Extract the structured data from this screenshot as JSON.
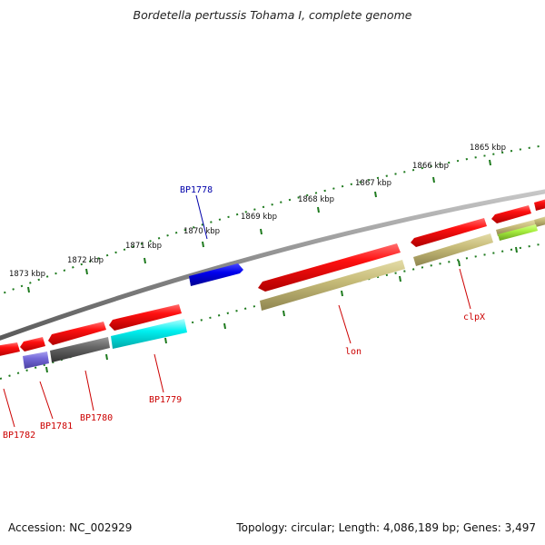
{
  "title": "Bordetella pertussis Tohama I, complete genome",
  "footer": {
    "accession": "Accession: NC_002929",
    "summary": "Topology: circular; Length: 4,086,189 bp; Genes: 3,497"
  },
  "colors": {
    "backbone": "#8a8a8a",
    "ticks": "#1e7a1e",
    "label_red": "#cc0000",
    "label_blue": "#0000aa"
  },
  "ticks": [
    {
      "label": "1865 kbp"
    },
    {
      "label": "1866 kbp"
    },
    {
      "label": "1867 kbp"
    },
    {
      "label": "1868 kbp"
    },
    {
      "label": "1869 kbp"
    },
    {
      "label": "1870 kbp"
    },
    {
      "label": "1871 kbp"
    },
    {
      "label": "1872 kbp"
    },
    {
      "label": "1873 kbp"
    }
  ],
  "genes": [
    {
      "label": "BP1778",
      "color": "blue"
    },
    {
      "label": "lon",
      "color": "red"
    },
    {
      "label": "clpX",
      "color": "red"
    },
    {
      "label": "BP1779",
      "color": "red"
    },
    {
      "label": "BP1780",
      "color": "red"
    },
    {
      "label": "BP1781",
      "color": "red"
    },
    {
      "label": "BP1782",
      "color": "red"
    }
  ]
}
